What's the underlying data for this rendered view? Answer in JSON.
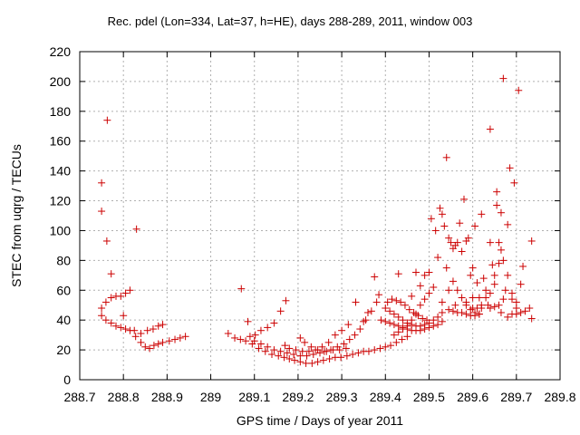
{
  "chart_data": {
    "type": "scatter",
    "title": "Rec. pdel (Lon=334, Lat=37, h=HE), days 288-289, 2011, window 003",
    "xlabel": "GPS time / Days of year 2011",
    "ylabel": "STEC from uqrg / TECUs",
    "xlim": [
      288.7,
      289.8
    ],
    "ylim": [
      0,
      220
    ],
    "x_ticks": [
      288.7,
      288.8,
      288.9,
      289.0,
      289.1,
      289.2,
      289.3,
      289.4,
      289.5,
      289.6,
      289.7,
      289.8
    ],
    "x_tick_labels": [
      "288.7",
      "288.8",
      "288.9",
      "289",
      "289.1",
      "289.2",
      "289.3",
      "289.4",
      "289.5",
      "289.6",
      "289.7",
      "289.8"
    ],
    "y_ticks": [
      0,
      20,
      40,
      60,
      80,
      100,
      120,
      140,
      160,
      180,
      200,
      220
    ],
    "y_tick_labels": [
      "0",
      "20",
      "40",
      "60",
      "80",
      "100",
      "120",
      "140",
      "160",
      "180",
      "200",
      "220"
    ],
    "grid": true,
    "marker": "+",
    "marker_color": "#cc0000",
    "series": [
      {
        "points": [
          [
            288.75,
            132
          ],
          [
            288.75,
            113
          ],
          [
            288.763,
            174
          ],
          [
            288.762,
            93
          ],
          [
            288.772,
            71
          ],
          [
            288.75,
            48
          ],
          [
            288.76,
            52
          ],
          [
            288.772,
            55
          ],
          [
            288.783,
            56
          ],
          [
            288.794,
            56
          ],
          [
            288.805,
            58
          ],
          [
            288.815,
            60
          ],
          [
            288.75,
            43
          ],
          [
            288.76,
            40
          ],
          [
            288.772,
            38
          ],
          [
            288.783,
            36
          ],
          [
            288.794,
            35
          ],
          [
            288.805,
            34
          ],
          [
            288.815,
            33
          ],
          [
            288.8,
            43
          ],
          [
            288.825,
            33
          ],
          [
            288.83,
            101
          ],
          [
            288.828,
            29
          ],
          [
            288.84,
            25
          ],
          [
            288.85,
            22
          ],
          [
            288.86,
            21
          ],
          [
            288.87,
            23
          ],
          [
            288.88,
            24
          ],
          [
            288.89,
            25
          ],
          [
            288.905,
            26
          ],
          [
            288.918,
            27
          ],
          [
            288.93,
            28
          ],
          [
            288.942,
            29
          ],
          [
            288.84,
            31
          ],
          [
            288.855,
            33
          ],
          [
            288.868,
            34
          ],
          [
            288.88,
            36
          ],
          [
            288.89,
            37
          ],
          [
            289.07,
            61
          ],
          [
            289.085,
            39
          ],
          [
            289.04,
            31
          ],
          [
            289.055,
            28
          ],
          [
            289.068,
            27
          ],
          [
            289.08,
            26
          ],
          [
            289.09,
            29
          ],
          [
            289.102,
            30
          ],
          [
            289.115,
            33
          ],
          [
            289.13,
            35
          ],
          [
            289.145,
            38
          ],
          [
            289.16,
            46
          ],
          [
            289.172,
            53
          ],
          [
            289.095,
            24
          ],
          [
            289.11,
            21
          ],
          [
            289.125,
            19
          ],
          [
            289.14,
            17
          ],
          [
            289.155,
            16
          ],
          [
            289.168,
            15
          ],
          [
            289.18,
            14
          ],
          [
            289.192,
            13
          ],
          [
            289.205,
            12
          ],
          [
            289.218,
            11
          ],
          [
            289.232,
            11
          ],
          [
            289.245,
            12
          ],
          [
            289.258,
            13
          ],
          [
            289.272,
            14
          ],
          [
            289.285,
            15
          ],
          [
            289.298,
            15
          ],
          [
            289.312,
            16
          ],
          [
            289.325,
            17
          ],
          [
            289.338,
            18
          ],
          [
            289.35,
            19
          ],
          [
            289.362,
            19
          ],
          [
            289.375,
            20
          ],
          [
            289.388,
            21
          ],
          [
            289.4,
            22
          ],
          [
            289.412,
            23
          ],
          [
            289.425,
            25
          ],
          [
            289.438,
            27
          ],
          [
            289.45,
            29
          ],
          [
            289.1,
            26
          ],
          [
            289.115,
            24
          ],
          [
            289.13,
            22
          ],
          [
            289.145,
            20
          ],
          [
            289.16,
            19
          ],
          [
            289.175,
            18
          ],
          [
            289.19,
            17
          ],
          [
            289.205,
            16
          ],
          [
            289.22,
            16
          ],
          [
            289.235,
            17
          ],
          [
            289.25,
            18
          ],
          [
            289.265,
            19
          ],
          [
            289.28,
            20
          ],
          [
            289.295,
            20
          ],
          [
            289.31,
            21
          ],
          [
            289.17,
            23
          ],
          [
            289.18,
            21
          ],
          [
            289.195,
            20
          ],
          [
            289.21,
            19
          ],
          [
            289.225,
            19
          ],
          [
            289.24,
            20
          ],
          [
            289.255,
            22
          ],
          [
            289.27,
            25
          ],
          [
            289.285,
            30
          ],
          [
            289.3,
            33
          ],
          [
            289.315,
            37
          ],
          [
            289.205,
            28
          ],
          [
            289.215,
            25
          ],
          [
            289.23,
            22
          ],
          [
            289.245,
            20
          ],
          [
            289.26,
            19
          ],
          [
            289.275,
            20
          ],
          [
            289.29,
            22
          ],
          [
            289.305,
            24
          ],
          [
            289.318,
            27
          ],
          [
            289.33,
            30
          ],
          [
            289.342,
            34
          ],
          [
            289.355,
            40
          ],
          [
            289.368,
            46
          ],
          [
            289.38,
            52
          ],
          [
            289.332,
            52
          ],
          [
            289.35,
            39
          ],
          [
            289.36,
            45
          ],
          [
            289.375,
            69
          ],
          [
            289.385,
            57
          ],
          [
            289.39,
            40
          ],
          [
            289.4,
            39
          ],
          [
            289.41,
            38
          ],
          [
            289.42,
            37
          ],
          [
            289.43,
            36
          ],
          [
            289.44,
            35
          ],
          [
            289.45,
            34
          ],
          [
            289.46,
            33
          ],
          [
            289.47,
            33
          ],
          [
            289.48,
            33
          ],
          [
            289.49,
            34
          ],
          [
            289.5,
            35
          ],
          [
            289.51,
            36
          ],
          [
            289.52,
            37
          ],
          [
            289.53,
            39
          ],
          [
            289.4,
            48
          ],
          [
            289.41,
            46
          ],
          [
            289.42,
            44
          ],
          [
            289.43,
            42
          ],
          [
            289.44,
            40
          ],
          [
            289.45,
            38
          ],
          [
            289.46,
            37
          ],
          [
            289.47,
            36
          ],
          [
            289.48,
            36
          ],
          [
            289.49,
            37
          ],
          [
            289.5,
            38
          ],
          [
            289.51,
            40
          ],
          [
            289.52,
            42
          ],
          [
            289.53,
            45
          ],
          [
            289.405,
            52
          ],
          [
            289.415,
            54
          ],
          [
            289.425,
            53
          ],
          [
            289.435,
            52
          ],
          [
            289.445,
            50
          ],
          [
            289.455,
            47
          ],
          [
            289.465,
            45
          ],
          [
            289.475,
            43
          ],
          [
            289.485,
            41
          ],
          [
            289.495,
            40
          ],
          [
            289.42,
            30
          ],
          [
            289.43,
            32
          ],
          [
            289.44,
            34
          ],
          [
            289.45,
            36
          ],
          [
            289.46,
            40
          ],
          [
            289.47,
            44
          ],
          [
            289.48,
            50
          ],
          [
            289.49,
            54
          ],
          [
            289.5,
            58
          ],
          [
            289.51,
            62
          ],
          [
            289.43,
            71
          ],
          [
            289.46,
            56
          ],
          [
            289.47,
            72
          ],
          [
            289.48,
            63
          ],
          [
            289.49,
            70
          ],
          [
            289.5,
            72
          ],
          [
            289.505,
            108
          ],
          [
            289.515,
            100
          ],
          [
            289.52,
            82
          ],
          [
            289.525,
            115
          ],
          [
            289.53,
            111
          ],
          [
            289.535,
            103
          ],
          [
            289.54,
            149
          ],
          [
            289.545,
            95
          ],
          [
            289.55,
            92
          ],
          [
            289.555,
            88
          ],
          [
            289.56,
            90
          ],
          [
            289.565,
            92
          ],
          [
            289.57,
            105
          ],
          [
            289.575,
            86
          ],
          [
            289.58,
            121
          ],
          [
            289.585,
            93
          ],
          [
            289.54,
            75
          ],
          [
            289.555,
            66
          ],
          [
            289.565,
            60
          ],
          [
            289.575,
            55
          ],
          [
            289.585,
            50
          ],
          [
            289.595,
            47
          ],
          [
            289.605,
            45
          ],
          [
            289.615,
            44
          ],
          [
            289.545,
            47
          ],
          [
            289.555,
            46
          ],
          [
            289.565,
            45
          ],
          [
            289.575,
            45
          ],
          [
            289.585,
            44
          ],
          [
            289.595,
            43
          ],
          [
            289.605,
            43
          ],
          [
            289.615,
            44
          ],
          [
            289.59,
            95
          ],
          [
            289.6,
            75
          ],
          [
            289.605,
            103
          ],
          [
            289.61,
            65
          ],
          [
            289.615,
            55
          ],
          [
            289.62,
            111
          ],
          [
            289.625,
            68
          ],
          [
            289.63,
            55
          ],
          [
            289.635,
            50
          ],
          [
            289.64,
            168
          ],
          [
            289.64,
            92
          ],
          [
            289.645,
            77
          ],
          [
            289.65,
            70
          ],
          [
            289.655,
            126
          ],
          [
            289.655,
            117
          ],
          [
            289.66,
            92
          ],
          [
            289.665,
            87
          ],
          [
            289.665,
            112
          ],
          [
            289.67,
            202
          ],
          [
            289.67,
            80
          ],
          [
            289.675,
            60
          ],
          [
            289.68,
            70
          ],
          [
            289.68,
            104
          ],
          [
            289.685,
            142
          ],
          [
            289.69,
            54
          ],
          [
            289.695,
            132
          ],
          [
            289.7,
            48
          ],
          [
            289.705,
            194
          ],
          [
            289.66,
            78
          ],
          [
            289.65,
            64
          ],
          [
            289.64,
            58
          ],
          [
            289.63,
            60
          ],
          [
            289.62,
            50
          ],
          [
            289.61,
            48
          ],
          [
            289.6,
            55
          ],
          [
            289.595,
            70
          ],
          [
            289.64,
            48
          ],
          [
            289.65,
            49
          ],
          [
            289.66,
            50
          ],
          [
            289.67,
            54
          ],
          [
            289.68,
            42
          ],
          [
            289.69,
            44
          ],
          [
            289.7,
            44
          ],
          [
            289.71,
            45
          ],
          [
            289.72,
            46
          ],
          [
            289.73,
            48
          ],
          [
            289.735,
            41
          ],
          [
            289.715,
            76
          ],
          [
            289.735,
            93
          ],
          [
            289.7,
            52
          ],
          [
            289.71,
            64
          ],
          [
            289.69,
            58
          ],
          [
            289.665,
            45
          ],
          [
            289.62,
            48
          ],
          [
            289.6,
            48
          ],
          [
            289.585,
            52
          ],
          [
            289.56,
            50
          ],
          [
            289.545,
            60
          ],
          [
            289.53,
            52
          ]
        ]
      }
    ]
  }
}
